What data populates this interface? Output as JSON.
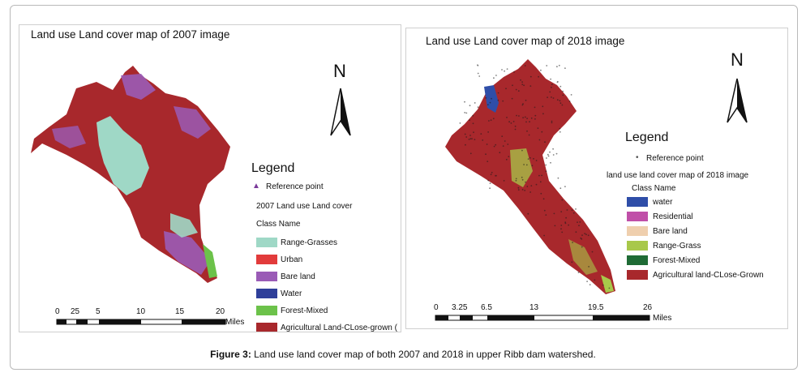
{
  "panels": {
    "left": {
      "title": "Land use Land cover map of 2007 image",
      "north": "N",
      "legend_title": "Legend",
      "reference_point": "Reference point",
      "layer_title": "2007 Land use Land cover",
      "class_header": "Class Name",
      "classes": [
        {
          "label": "Range-Grasses",
          "color": "#9fd8c6"
        },
        {
          "label": "Urban",
          "color": "#e23b3b"
        },
        {
          "label": "Bare land",
          "color": "#9a5bb6"
        },
        {
          "label": "Water",
          "color": "#2f3f9a"
        },
        {
          "label": "Forest-Mixed",
          "color": "#6cc24a"
        },
        {
          "label": "Agricultural Land-CLose-grown (",
          "color": "#a8282c"
        }
      ],
      "scale_ticks": [
        "0",
        "25",
        "5",
        "10",
        "15",
        "20"
      ],
      "scale_unit": "Miles"
    },
    "right": {
      "title": "Land use Land cover map of 2018 image",
      "north": "N",
      "legend_title": "Legend",
      "reference_point": "Reference point",
      "layer_title": "land use land cover map of 2018 image",
      "class_header": "Class Name",
      "classes": [
        {
          "label": "water",
          "color": "#2f4ea8"
        },
        {
          "label": "Residential",
          "color": "#c04fa8"
        },
        {
          "label": "Bare land",
          "color": "#efcfae"
        },
        {
          "label": "Range-Grass",
          "color": "#a8c84a"
        },
        {
          "label": "Forest-Mixed",
          "color": "#1f6b35"
        },
        {
          "label": "Agricultural land-CLose-Grown",
          "color": "#a8282c"
        }
      ],
      "scale_ticks": [
        "0",
        "3.25",
        "6.5",
        "13",
        "19.5",
        "26"
      ],
      "scale_unit": "Miles"
    }
  },
  "caption": {
    "label": "Figure 3:",
    "text": " Land use land cover map of both 2007 and 2018 in upper Ribb dam watershed."
  }
}
